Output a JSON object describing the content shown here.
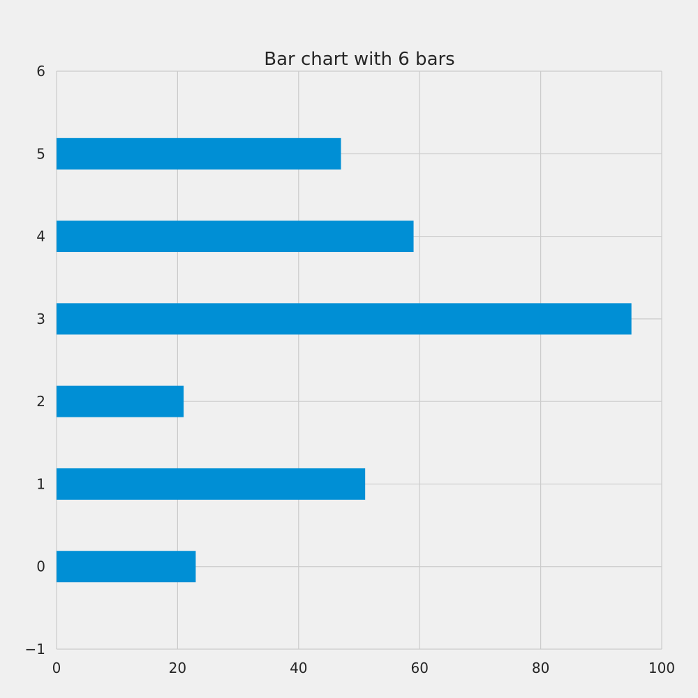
{
  "chart_data": {
    "type": "bar",
    "orientation": "horizontal",
    "title": "Bar chart with 6 bars",
    "xlabel": "",
    "ylabel": "",
    "categories": [
      "0",
      "1",
      "2",
      "3",
      "4",
      "5"
    ],
    "values": [
      23,
      51,
      21,
      95,
      59,
      47
    ],
    "xlim": [
      0,
      100
    ],
    "ylim": [
      -1,
      6
    ],
    "x_ticks": [
      "0",
      "20",
      "40",
      "60",
      "80",
      "100"
    ],
    "y_ticks": [
      "−1",
      "0",
      "1",
      "2",
      "3",
      "4",
      "5",
      "6"
    ],
    "grid": true,
    "bar_color": "#008fd5",
    "grid_color": "#cbcbcb",
    "background_color": "#f0f0f0",
    "text_color": "#262626"
  }
}
